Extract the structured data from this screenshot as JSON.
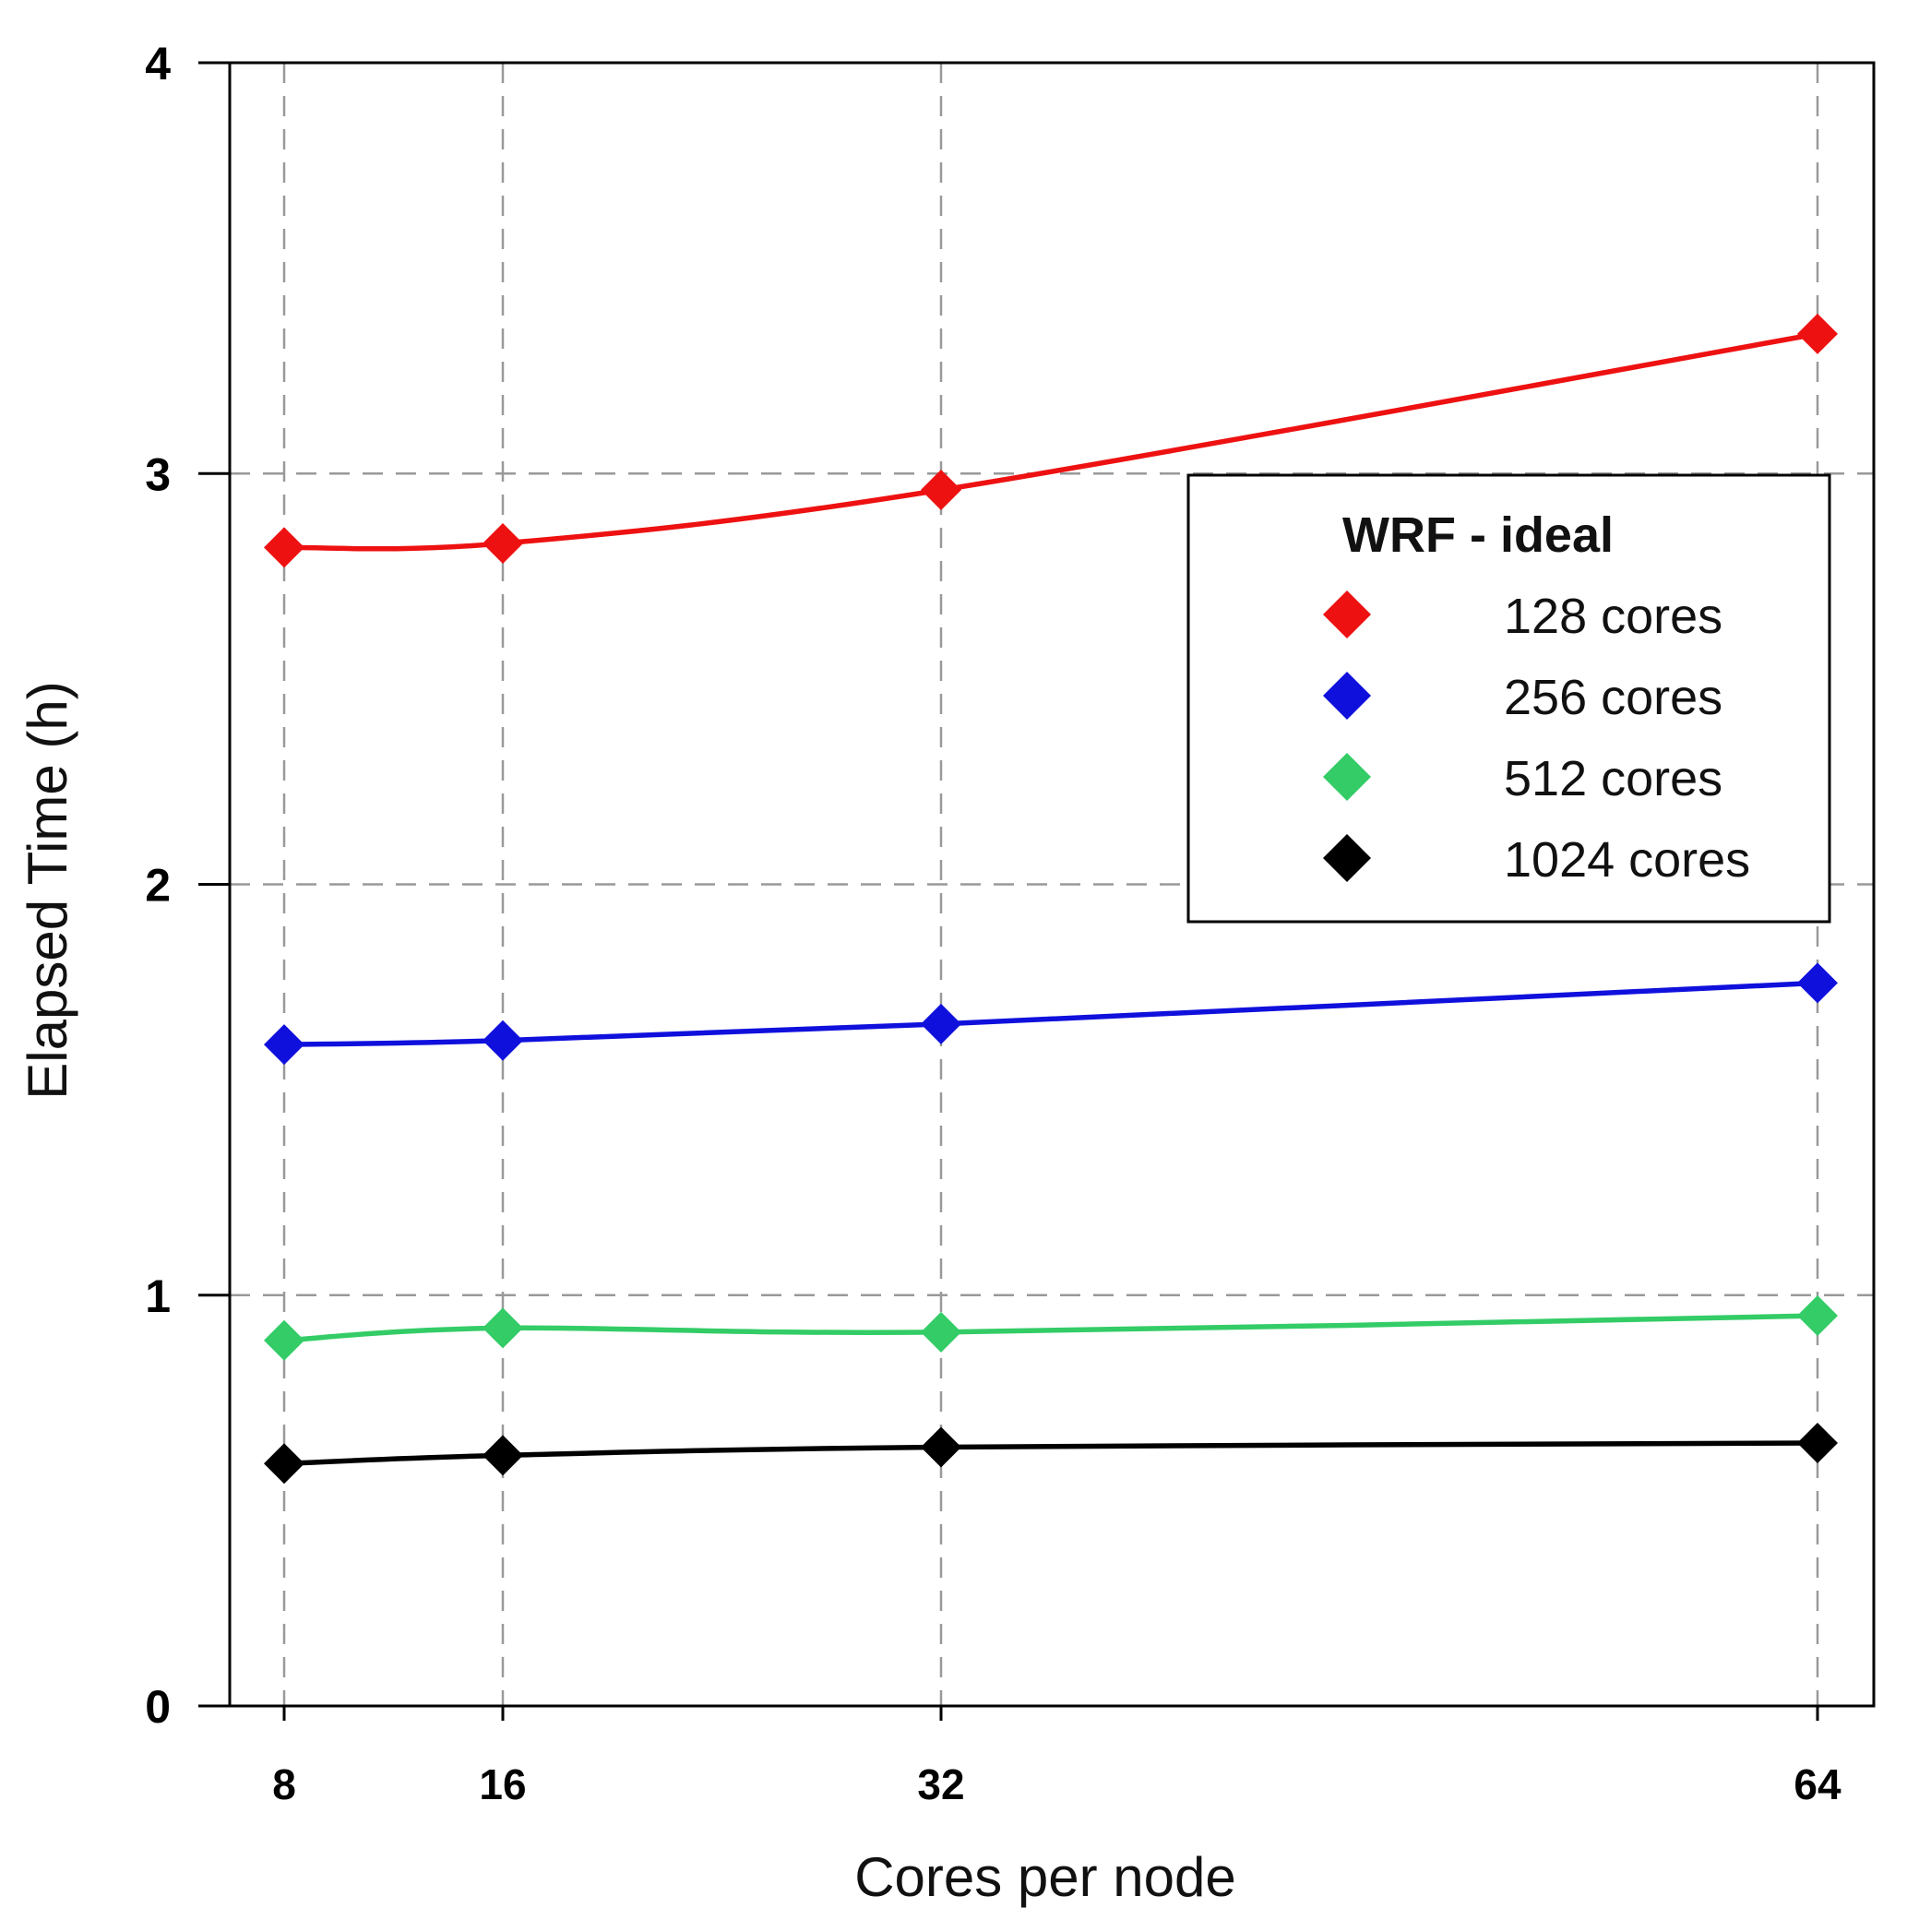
{
  "chart_data": {
    "type": "line",
    "title": "",
    "xlabel": "Cores per node",
    "ylabel": "Elapsed Time (h)",
    "x": [
      8,
      16,
      32,
      64
    ],
    "x_tick_labels": [
      "8",
      "16",
      "32",
      "64"
    ],
    "y_ticks": [
      0,
      1,
      2,
      3,
      4
    ],
    "y_tick_labels": [
      "0",
      "1",
      "2",
      "3",
      "4"
    ],
    "ylim": [
      0,
      4
    ],
    "grid": "dashed",
    "legend": {
      "title": "WRF - ideal",
      "placement": "right-upper"
    },
    "series": [
      {
        "name": "128 cores",
        "color": "#ee1111",
        "values": [
          2.82,
          2.83,
          2.96,
          3.34
        ]
      },
      {
        "name": "256 cores",
        "color": "#1010dd",
        "values": [
          1.61,
          1.62,
          1.66,
          1.76
        ]
      },
      {
        "name": "512 cores",
        "color": "#33cc66",
        "values": [
          0.89,
          0.92,
          0.91,
          0.95
        ]
      },
      {
        "name": "1024 cores",
        "color": "#000000",
        "values": [
          0.59,
          0.61,
          0.63,
          0.64
        ]
      }
    ]
  }
}
